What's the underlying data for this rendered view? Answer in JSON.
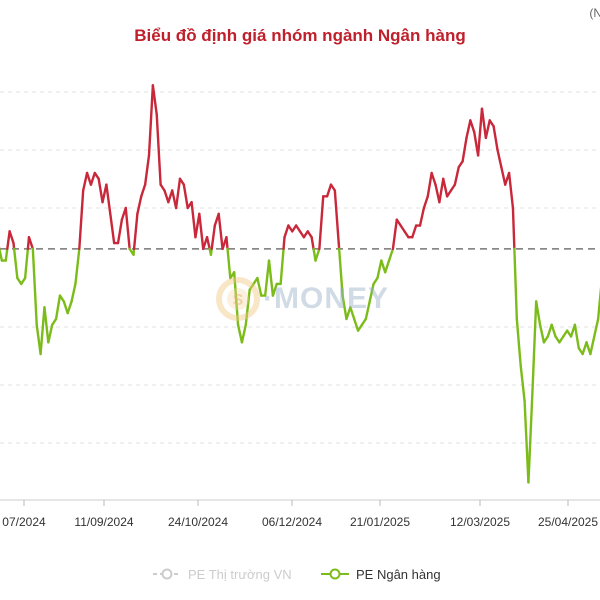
{
  "chart_data": {
    "type": "line",
    "title": "Biểu đồ định giá nhóm ngành Ngân hàng",
    "note": "(N",
    "x_tick_labels": [
      "07/2024",
      "11/09/2024",
      "24/10/2024",
      "06/12/2024",
      "21/01/2025",
      "12/03/2025",
      "25/04/2025"
    ],
    "y_tick_labels": [],
    "grid": true,
    "legend_placement": "bottom",
    "watermark": "S·MONEY",
    "colors": {
      "title": "#c0202b",
      "above": "#c8283a",
      "below": "#7cbc1a",
      "reference": "#777777",
      "grid": "#e2e2e2",
      "legend_off": "#cccccc"
    },
    "reference_series": {
      "name": "PE Thị trường VN",
      "visible": false,
      "value": 0
    },
    "series": [
      {
        "name": "PE Ngân hàng",
        "visible": true,
        "unit_note": "deviation relative to reference (dashed line = 0), no printed y-axis values",
        "values": [
          0.1,
          -0.2,
          -0.2,
          0.3,
          0.1,
          -0.5,
          -0.6,
          -0.5,
          0.2,
          0.0,
          -1.3,
          -1.8,
          -1.0,
          -1.6,
          -1.3,
          -1.2,
          -0.8,
          -0.9,
          -1.1,
          -0.9,
          -0.6,
          0.0,
          1.0,
          1.3,
          1.1,
          1.3,
          1.2,
          0.8,
          1.1,
          0.6,
          0.1,
          0.1,
          0.5,
          0.7,
          0.0,
          -0.1,
          0.6,
          0.9,
          1.1,
          1.6,
          2.8,
          2.3,
          1.1,
          1.0,
          0.8,
          1.0,
          0.7,
          1.2,
          1.1,
          0.7,
          0.8,
          0.2,
          0.6,
          0.0,
          0.2,
          -0.1,
          0.4,
          0.6,
          0.0,
          0.2,
          -0.5,
          -0.4,
          -1.3,
          -1.6,
          -1.3,
          -0.7,
          -0.6,
          -0.5,
          -0.8,
          -0.8,
          -0.2,
          -0.8,
          -0.6,
          -0.6,
          0.2,
          0.4,
          0.3,
          0.4,
          0.3,
          0.2,
          0.3,
          0.2,
          -0.2,
          0.0,
          0.9,
          0.9,
          1.1,
          1.0,
          0.1,
          -0.8,
          -1.2,
          -1.0,
          -1.2,
          -1.4,
          -1.3,
          -1.2,
          -0.9,
          -0.6,
          -0.5,
          -0.2,
          -0.4,
          -0.2,
          0.0,
          0.5,
          0.4,
          0.3,
          0.2,
          0.2,
          0.4,
          0.4,
          0.7,
          0.9,
          1.3,
          1.1,
          0.8,
          1.2,
          0.9,
          1.0,
          1.1,
          1.4,
          1.5,
          1.9,
          2.2,
          2.0,
          1.6,
          2.4,
          1.9,
          2.2,
          2.1,
          1.7,
          1.4,
          1.1,
          1.3,
          0.7,
          -1.2,
          -2.0,
          -2.6,
          -4.0,
          -2.5,
          -0.9,
          -1.3,
          -1.6,
          -1.5,
          -1.3,
          -1.5,
          -1.6,
          -1.5,
          -1.4,
          -1.5,
          -1.3,
          -1.7,
          -1.8,
          -1.6,
          -1.8,
          -1.5,
          -1.2,
          -0.5
        ],
        "ylim": [
          -4.3,
          3.2
        ]
      }
    ]
  }
}
